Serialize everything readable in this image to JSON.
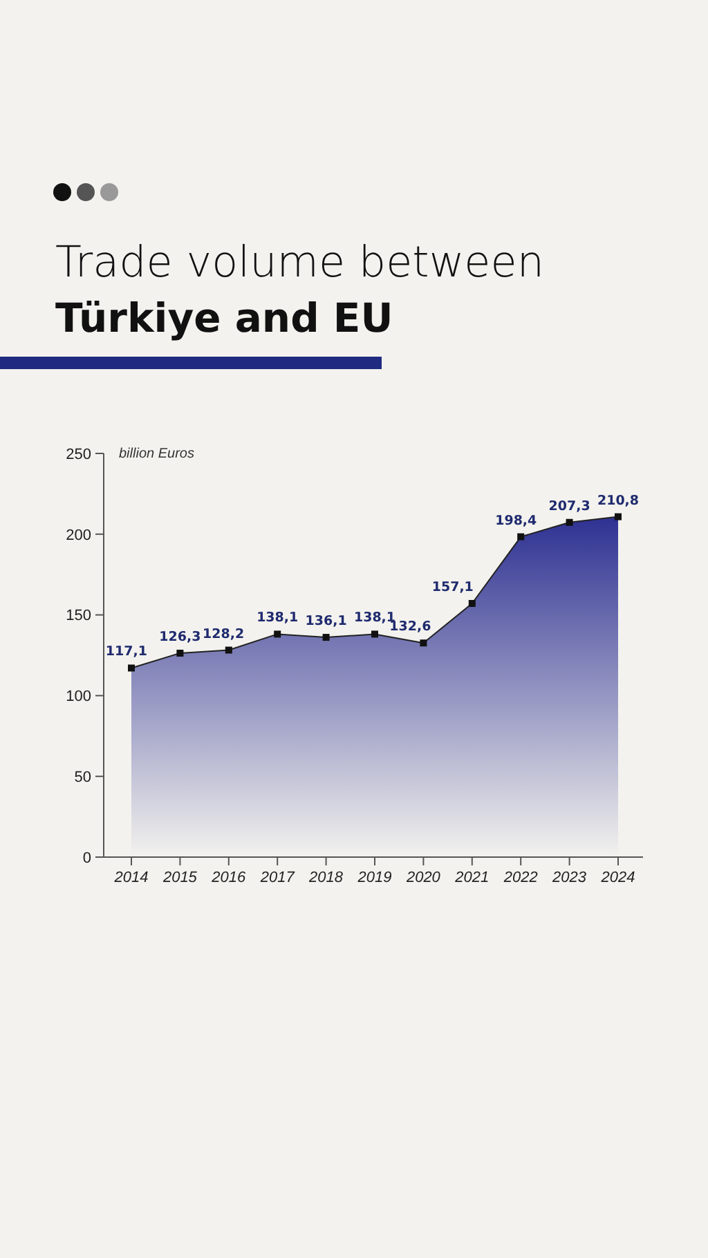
{
  "chart_data": {
    "type": "area",
    "title": "Trade volume between",
    "subtitle": "Türkiye and EU",
    "ylabel": "billion Euros",
    "categories": [
      "2014",
      "2015",
      "2016",
      "2017",
      "2018",
      "2019",
      "2020",
      "2021",
      "2022",
      "2023",
      "2024"
    ],
    "series": [
      {
        "color": "#2e3192",
        "values": [
          117.1,
          126.3,
          128.2,
          138.1,
          136.1,
          138.1,
          132.6,
          157.1,
          198.4,
          207.3,
          210.8
        ],
        "value_labels": [
          "117,1",
          "126,3",
          "128,2",
          "138,1",
          "136,1",
          "138,1",
          "132,6",
          "157,1",
          "198,4",
          "207,3",
          "210,8"
        ]
      }
    ],
    "ylim": [
      0,
      250
    ],
    "yticks": [
      0,
      50,
      100,
      150,
      200,
      250
    ],
    "grid": false,
    "marker": "square",
    "line_style": "solid"
  }
}
